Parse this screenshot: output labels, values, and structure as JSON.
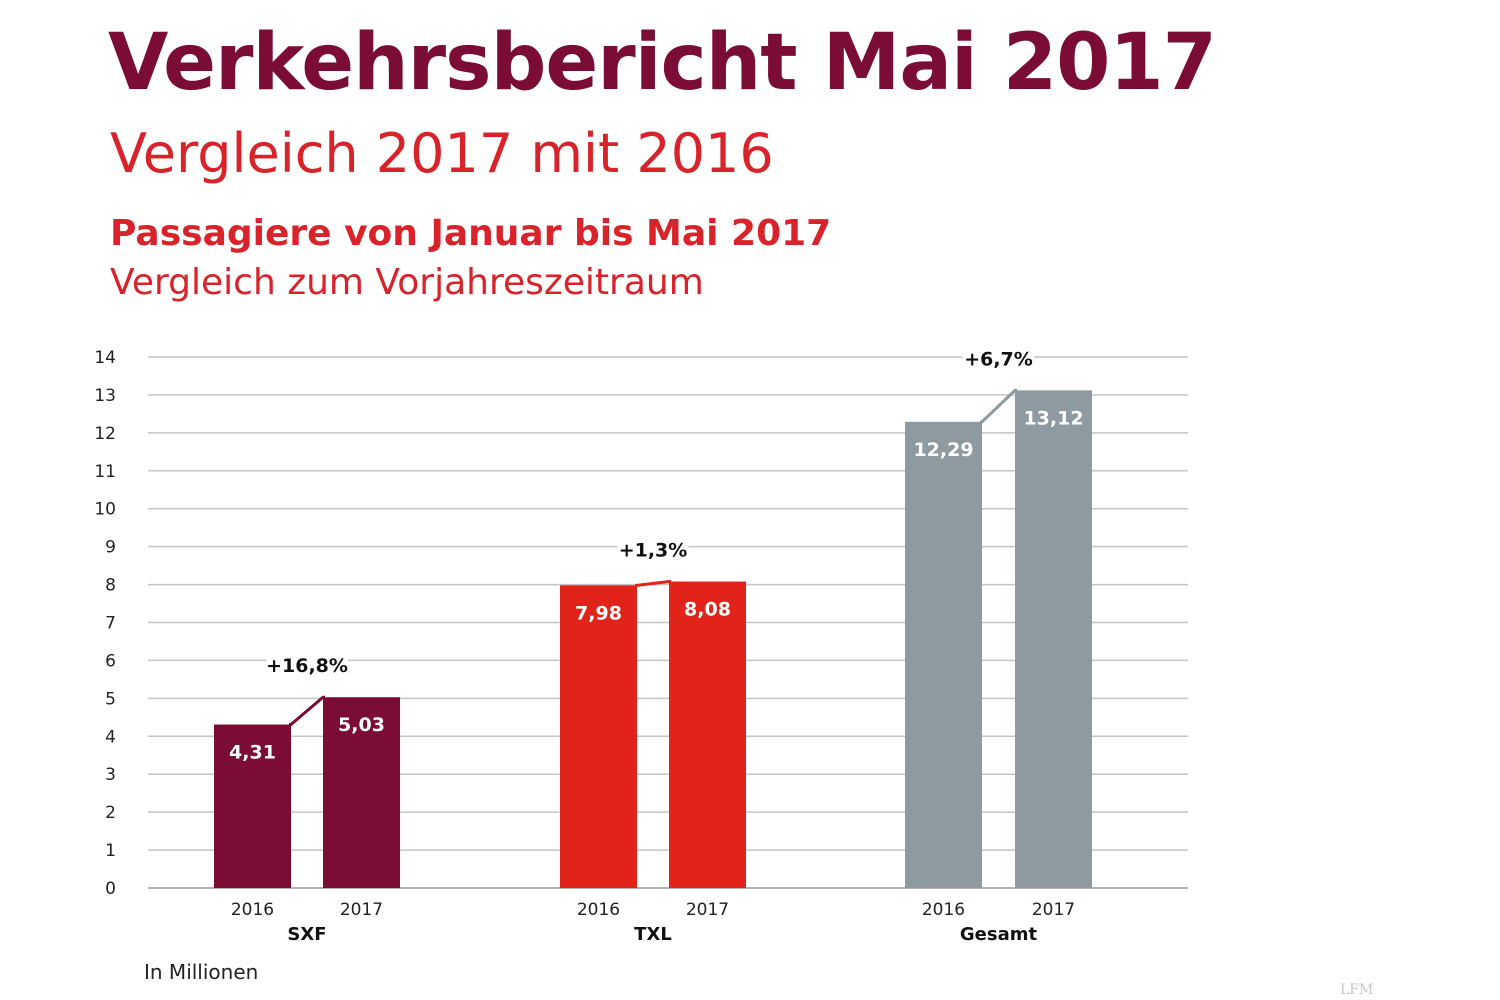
{
  "header": {
    "title": "Verkehrsbericht Mai 2017",
    "subtitle": "Vergleich 2017 mit 2016",
    "section_title": "Passagiere von Januar bis Mai 2017",
    "section_subtitle": "Vergleich zum Vorjahreszeitraum"
  },
  "footer": {
    "unit_note": "In Millionen",
    "watermark": "LFM"
  },
  "chart_data": {
    "type": "bar",
    "ylim": [
      0,
      14
    ],
    "yticks": [
      0,
      1,
      2,
      3,
      4,
      5,
      6,
      7,
      8,
      9,
      10,
      11,
      12,
      13,
      14
    ],
    "grid": true,
    "groups": [
      {
        "name": "SXF",
        "color": "#7a0c35",
        "change_label": "+16,8%",
        "bars": [
          {
            "year": "2016",
            "value": 4.31,
            "label": "4,31"
          },
          {
            "year": "2017",
            "value": 5.03,
            "label": "5,03"
          }
        ]
      },
      {
        "name": "TXL",
        "color": "#e2231a",
        "change_label": "+1,3%",
        "bars": [
          {
            "year": "2016",
            "value": 7.98,
            "label": "7,98"
          },
          {
            "year": "2017",
            "value": 8.08,
            "label": "8,08"
          }
        ]
      },
      {
        "name": "Gesamt",
        "color": "#8e9aa0",
        "change_label": "+6,7%",
        "bars": [
          {
            "year": "2016",
            "value": 12.29,
            "label": "12,29"
          },
          {
            "year": "2017",
            "value": 13.12,
            "label": "13,12"
          }
        ]
      }
    ]
  }
}
